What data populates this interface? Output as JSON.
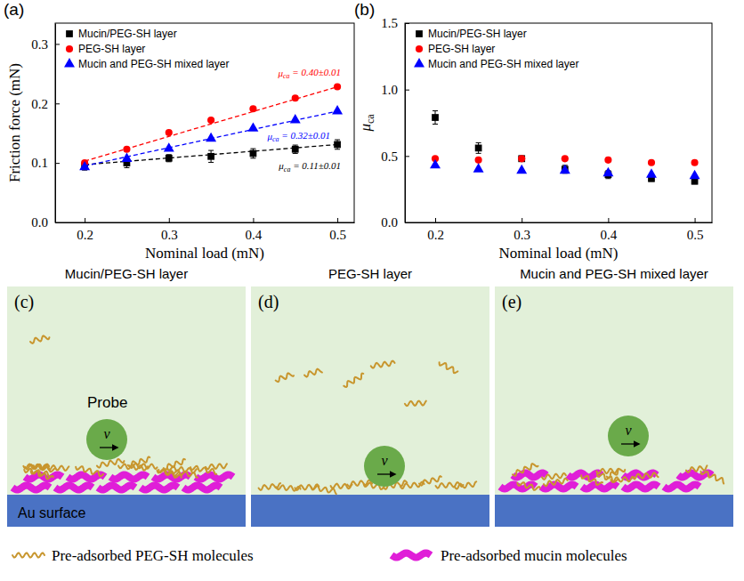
{
  "chart_data": [
    {
      "type": "scatter",
      "panel_label": "(a)",
      "x_label": "Nominal load (mN)",
      "y_label": "Friction force (mN)",
      "x": [
        0.2,
        0.25,
        0.3,
        0.35,
        0.4,
        0.45,
        0.5
      ],
      "xlim": [
        0.165,
        0.52
      ],
      "xticks": [
        0.2,
        0.3,
        0.4,
        0.5
      ],
      "ylim": [
        0,
        0.335
      ],
      "yticks": [
        {
          "value": 0,
          "label": "0.0"
        },
        0.1,
        0.2,
        0.3
      ],
      "legend": "top-left",
      "series": [
        {
          "name": "Mucin/PEG-SH layer",
          "color": "#000000",
          "marker": "square",
          "values": [
            0.095,
            0.1,
            0.108,
            0.111,
            0.116,
            0.123,
            0.131
          ],
          "errors": [
            0.007,
            0.008,
            0.006,
            0.01,
            0.008,
            0.007,
            0.008
          ],
          "fit": {
            "x": [
              0.2,
              0.5
            ],
            "values": [
              0.097,
              0.131
            ],
            "line_style": "dashed"
          },
          "fit_label": {
            "symbol": "μ",
            "subscript": "ca",
            "text": " = 0.11±0.01"
          }
        },
        {
          "name": "PEG-SH layer",
          "color": "#ff0000",
          "marker": "circle",
          "values": [
            0.1,
            0.123,
            0.151,
            0.172,
            0.191,
            0.209,
            0.228
          ],
          "fit": {
            "x": [
              0.2,
              0.5
            ],
            "values": [
              0.103,
              0.228
            ],
            "line_style": "dashed"
          },
          "fit_label": {
            "symbol": "μ",
            "subscript": "ca",
            "text": " = 0.40±0.01"
          }
        },
        {
          "name": "Mucin and PEG-SH mixed layer",
          "color": "#0000ff",
          "marker": "triangle",
          "values": [
            0.093,
            0.107,
            0.124,
            0.141,
            0.158,
            0.172,
            0.187
          ],
          "fit": {
            "x": [
              0.2,
              0.5
            ],
            "values": [
              0.095,
              0.187
            ],
            "line_style": "dashed"
          },
          "fit_label": {
            "symbol": "μ",
            "subscript": "ca",
            "text": " = 0.32±0.01"
          }
        }
      ]
    },
    {
      "type": "scatter",
      "panel_label": "(b)",
      "x_label": "Nominal load (mN)",
      "y_label": "μ",
      "y_label_subscript": "ca",
      "x": [
        0.2,
        0.25,
        0.3,
        0.35,
        0.4,
        0.45,
        0.5
      ],
      "xlim": [
        0.165,
        0.52
      ],
      "xticks": [
        0.2,
        0.3,
        0.4,
        0.5
      ],
      "ylim": [
        0,
        1.5
      ],
      "yticks": [
        {
          "value": 0,
          "label": "0.0"
        },
        0.5,
        {
          "value": 1,
          "label": "1.0"
        },
        1.5
      ],
      "legend": "top-left",
      "series": [
        {
          "name": "Mucin/PEG-SH layer",
          "color": "#000000",
          "marker": "square",
          "values": [
            0.79,
            0.56,
            0.48,
            0.4,
            0.36,
            0.33,
            0.31
          ],
          "errors": [
            0.05,
            0.04,
            0.02,
            0.03,
            0.03,
            0.02,
            0.02
          ]
        },
        {
          "name": "PEG-SH layer",
          "color": "#ff0000",
          "marker": "circle",
          "values": [
            0.48,
            0.47,
            0.48,
            0.48,
            0.47,
            0.45,
            0.45
          ]
        },
        {
          "name": "Mucin and PEG-SH mixed layer",
          "color": "#0000ff",
          "marker": "triangle",
          "values": [
            0.43,
            0.4,
            0.39,
            0.39,
            0.37,
            0.36,
            0.35
          ]
        }
      ]
    }
  ],
  "schematics": {
    "panels": [
      {
        "letter": "(c)",
        "title": "Mucin/PEG-SH layer",
        "probe_label": "Probe",
        "velocity_label": "v",
        "surface_label": "Au surface"
      },
      {
        "letter": "(d)",
        "title": "PEG-SH layer",
        "velocity_label": "v"
      },
      {
        "letter": "(e)",
        "title": "Mucin and PEG-SH mixed layer",
        "velocity_label": "v"
      }
    ],
    "legend": [
      {
        "label": "Pre-adsorbed PEG-SH molecules",
        "color": "#c8962e"
      },
      {
        "label": "Pre-adsorbed mucin molecules",
        "color": "#e01ed8"
      }
    ]
  }
}
